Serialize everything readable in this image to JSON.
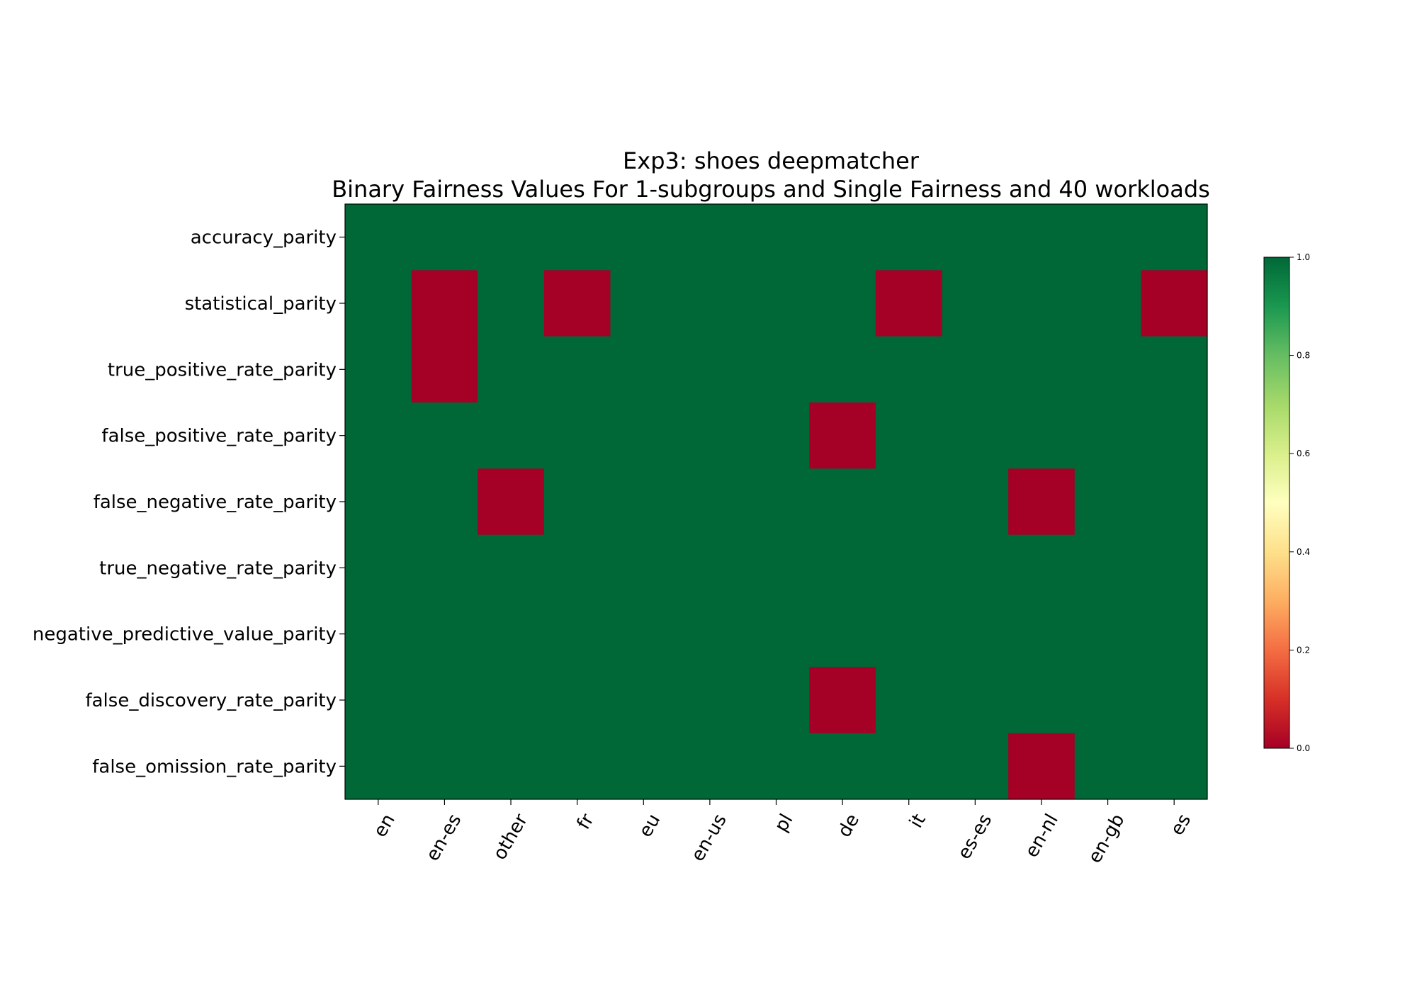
{
  "chart_data": {
    "type": "heatmap",
    "title": "Exp3: shoes deepmatcher",
    "subtitle": "Binary Fairness Values For 1-subgroups and Single Fairness and 40 workloads",
    "xlabel": "",
    "ylabel": "",
    "x_categories": [
      "en",
      "en-es",
      "other",
      "fr",
      "eu",
      "en-us",
      "pl",
      "de",
      "it",
      "es-es",
      "en-nl",
      "en-gb",
      "es"
    ],
    "y_categories": [
      "accuracy_parity",
      "statistical_parity",
      "true_positive_rate_parity",
      "false_positive_rate_parity",
      "false_negative_rate_parity",
      "true_negative_rate_parity",
      "negative_predictive_value_parity",
      "false_discovery_rate_parity",
      "false_omission_rate_parity"
    ],
    "values": [
      [
        1,
        1,
        1,
        1,
        1,
        1,
        1,
        1,
        1,
        1,
        1,
        1,
        1
      ],
      [
        1,
        0,
        1,
        0,
        1,
        1,
        1,
        1,
        0,
        1,
        1,
        1,
        0
      ],
      [
        1,
        0,
        1,
        1,
        1,
        1,
        1,
        1,
        1,
        1,
        1,
        1,
        1
      ],
      [
        1,
        1,
        1,
        1,
        1,
        1,
        1,
        0,
        1,
        1,
        1,
        1,
        1
      ],
      [
        1,
        1,
        0,
        1,
        1,
        1,
        1,
        1,
        1,
        1,
        0,
        1,
        1
      ],
      [
        1,
        1,
        1,
        1,
        1,
        1,
        1,
        1,
        1,
        1,
        1,
        1,
        1
      ],
      [
        1,
        1,
        1,
        1,
        1,
        1,
        1,
        1,
        1,
        1,
        1,
        1,
        1
      ],
      [
        1,
        1,
        1,
        1,
        1,
        1,
        1,
        0,
        1,
        1,
        1,
        1,
        1
      ],
      [
        1,
        1,
        1,
        1,
        1,
        1,
        1,
        1,
        1,
        1,
        0,
        1,
        1
      ]
    ],
    "colormap": "RdYlGn",
    "value_range": [
      0,
      1
    ],
    "colorbar": {
      "ticks": [
        "0.0",
        "0.2",
        "0.4",
        "0.6",
        "0.8",
        "1.0"
      ],
      "stops": [
        "#a50026",
        "#d73027",
        "#f46d43",
        "#fdae61",
        "#fee08b",
        "#ffffbf",
        "#d9ef8b",
        "#a6d96a",
        "#66bd63",
        "#1a9850",
        "#006837"
      ]
    },
    "grid": false,
    "legend": "colorbar-right"
  }
}
